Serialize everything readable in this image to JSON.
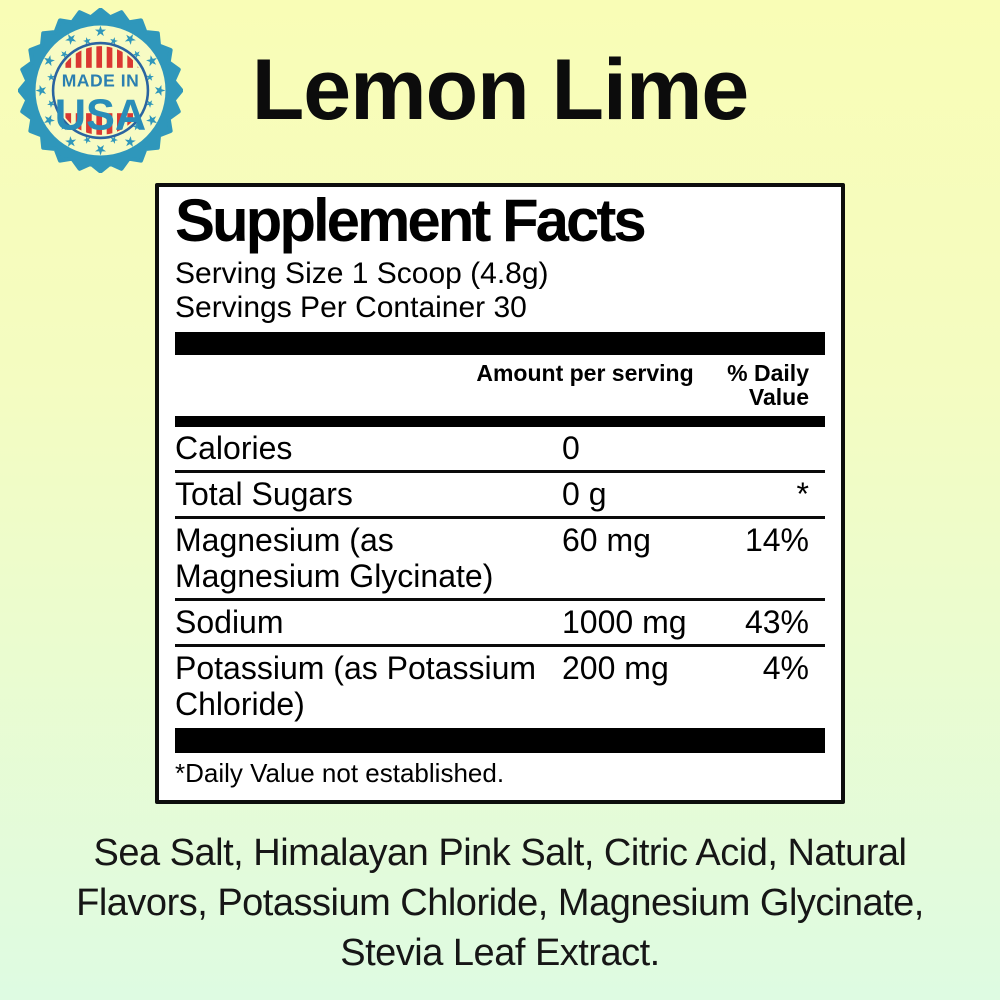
{
  "page": {
    "background_top": "#f9fdb6",
    "background_bottom": "#defbe2"
  },
  "badge": {
    "line1": "MADE IN",
    "line2": "USA",
    "teal": "#2f97bb",
    "navy": "#2b64a0",
    "red": "#da3832",
    "text_blue": "#2b7fb0",
    "usa_blue": "#2a8db8",
    "cream": "#f7fbc4"
  },
  "title": "Lemon Lime",
  "supplement_facts": {
    "heading": "Supplement Facts",
    "serving_size": "Serving Size 1 Scoop (4.8g)",
    "servings_per_container": "Servings Per Container 30",
    "columns": {
      "amount": "Amount per serving",
      "daily_value": "% Daily Value"
    },
    "rows": [
      {
        "label": "Calories",
        "amount": "0",
        "dv": ""
      },
      {
        "label": "Total Sugars",
        "amount": "0 g",
        "dv": "*"
      },
      {
        "label": "Magnesium (as Magnesium Glycinate)",
        "amount": "60 mg",
        "dv": "14%"
      },
      {
        "label": "Sodium",
        "amount": "1000 mg",
        "dv": "43%"
      },
      {
        "label": "Potassium (as Potassium Chloride)",
        "amount": "200 mg",
        "dv": "4%"
      }
    ],
    "footnote": "*Daily Value not established."
  },
  "ingredients": {
    "lines": [
      "Sea Salt, Himalayan Pink Salt, Citric Acid, Natural",
      "Flavors, Potassium Chloride, Magnesium Glycinate,",
      "Stevia Leaf Extract."
    ]
  }
}
